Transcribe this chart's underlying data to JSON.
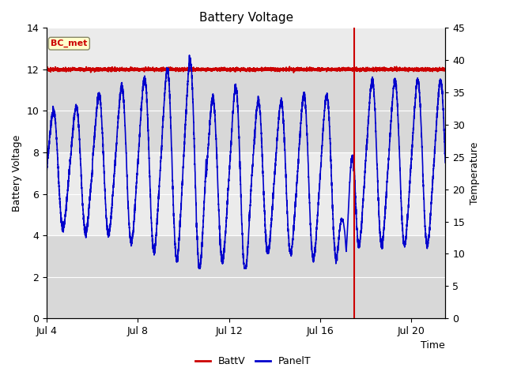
{
  "title": "Battery Voltage",
  "xlabel": "Time",
  "ylabel_left": "Battery Voltage",
  "ylabel_right": "Temperature",
  "xlim": [
    0,
    17.5
  ],
  "ylim_left": [
    0,
    14
  ],
  "ylim_right": [
    0,
    45
  ],
  "x_tick_labels": [
    "Jul 4",
    "Jul 8",
    "Jul 12",
    "Jul 16",
    "Jul 20"
  ],
  "x_tick_positions": [
    0,
    4,
    8,
    12,
    16
  ],
  "y_tick_left": [
    0,
    2,
    4,
    6,
    8,
    10,
    12,
    14
  ],
  "y_tick_right": [
    0,
    5,
    10,
    15,
    20,
    25,
    30,
    35,
    40,
    45
  ],
  "batt_color": "#cc0000",
  "panel_color": "#0000cc",
  "annotation_text": "BC_met",
  "annotation_color": "#cc0000",
  "annotation_bg": "#ffffcc",
  "bg_light": "#ebebeb",
  "bg_dark": "#d8d8d8",
  "vertical_line_x": 13.5,
  "batt_value": 12.0,
  "figsize": [
    6.4,
    4.8
  ],
  "dpi": 100
}
